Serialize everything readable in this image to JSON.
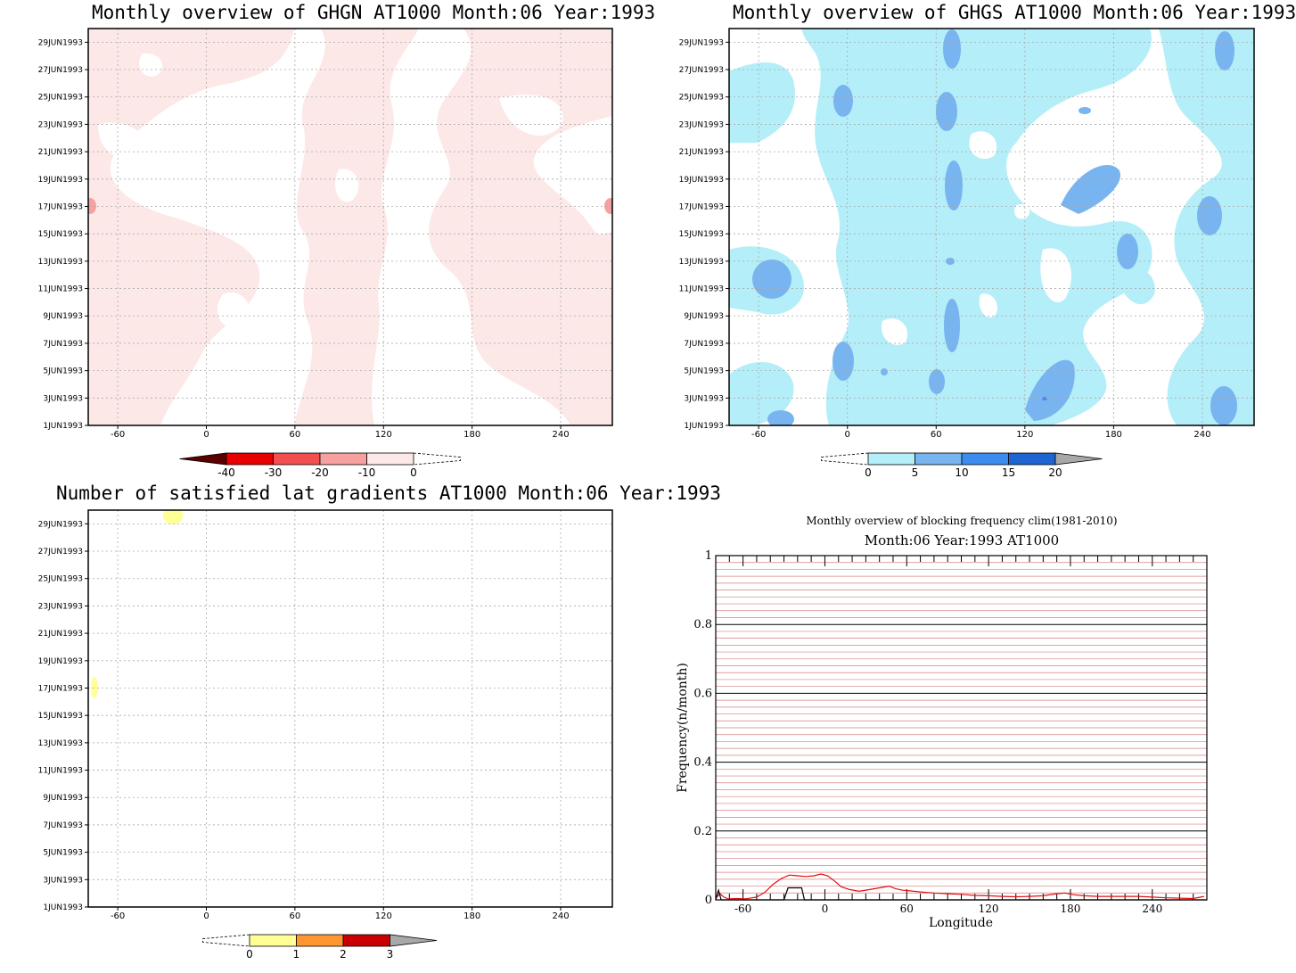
{
  "panels": {
    "ghgn": {
      "title": "Monthly overview of GHGN AT1000 Month:06 Year:1993",
      "colorbar": {
        "labels": [
          "-40",
          "-30",
          "-20",
          "-10",
          "0"
        ],
        "colors": [
          "#5a0000",
          "#e60000",
          "#f25050",
          "#f7a0a0",
          "#fde8e8"
        ]
      }
    },
    "ghgs": {
      "title": "Monthly overview of GHGS AT1000 Month:06 Year:1993",
      "colorbar": {
        "labels": [
          "0",
          "5",
          "10",
          "15",
          "20"
        ],
        "colors": [
          "#b4eef8",
          "#78b4f0",
          "#3c8cf0",
          "#1e64d2"
        ]
      }
    },
    "lat": {
      "title": "Number of satisfied lat gradients AT1000 Month:06 Year:1993",
      "colorbar": {
        "labels": [
          "0",
          "1",
          "2",
          "3"
        ],
        "colors": [
          "#ffff96",
          "#ff9632",
          "#c80000"
        ]
      }
    },
    "freq": {
      "title": "Monthly overview of blocking frequency clim(1981-2010)",
      "subtitle": "Month:06 Year:1993  AT1000",
      "ylabel": "Frequency(n/month)",
      "xlabel": "Longitude"
    }
  },
  "map_axes": {
    "x_ticks": [
      "-60",
      "0",
      "60",
      "120",
      "180",
      "240"
    ],
    "y_ticks": [
      "1JUN1993",
      "3JUN1993",
      "5JUN1993",
      "7JUN1993",
      "9JUN1993",
      "11JUN1993",
      "13JUN1993",
      "15JUN1993",
      "17JUN1993",
      "19JUN1993",
      "21JUN1993",
      "23JUN1993",
      "25JUN1993",
      "27JUN1993",
      "29JUN1993"
    ]
  },
  "chart_data": [
    {
      "type": "heatmap",
      "title": "Monthly overview of GHGN AT1000 Month:06 Year:1993",
      "x_range": [
        -80,
        275
      ],
      "y_range": [
        "1JUN1993",
        "30JUN1993"
      ],
      "x_ticks": [
        -60,
        0,
        60,
        120,
        180,
        240
      ],
      "legend_levels": [
        -40,
        -30,
        -20,
        -10,
        0
      ],
      "grid": true,
      "note_values": "mostly between -10 and 0 over large areas; small regions near -20 at 17JUN1993 on both edges"
    },
    {
      "type": "heatmap",
      "title": "Monthly overview of GHGS AT1000 Month:06 Year:1993",
      "x_range": [
        -80,
        275
      ],
      "y_range": [
        "1JUN1993",
        "30JUN1993"
      ],
      "x_ticks": [
        -60,
        0,
        60,
        120,
        180,
        240
      ],
      "legend_levels": [
        0,
        5,
        10,
        15,
        20
      ],
      "grid": true
    },
    {
      "type": "heatmap",
      "title": "Number of satisfied lat gradients AT1000 Month:06 Year:1993",
      "x_range": [
        -80,
        275
      ],
      "y_range": [
        "1JUN1993",
        "30JUN1993"
      ],
      "x_ticks": [
        -60,
        0,
        60,
        120,
        180,
        240
      ],
      "legend_levels": [
        0,
        1,
        2,
        3
      ],
      "grid": true
    },
    {
      "type": "line",
      "title": "Monthly overview of blocking frequency clim(1981-2010)",
      "subtitle": "Month:06 Year:1993  AT1000",
      "xlabel": "Longitude",
      "ylabel": "Frequency(n/month)",
      "xlim": [
        -80,
        280
      ],
      "ylim": [
        0,
        1
      ],
      "x_ticks": [
        -60,
        0,
        60,
        120,
        180,
        240
      ],
      "y_ticks": [
        "0",
        "0.2",
        "0.4",
        "0.6",
        "0.8",
        "1"
      ],
      "series": [
        {
          "color": "#e01010",
          "x": [
            -80,
            -77,
            -74,
            -71,
            -65,
            -58,
            -50,
            -44,
            -38,
            -32,
            -26,
            -20,
            -14,
            -8,
            -3,
            2,
            7,
            12,
            18,
            25,
            33,
            40,
            47,
            52,
            57,
            63,
            70,
            80,
            90,
            100,
            110,
            120,
            130,
            140,
            150,
            160,
            170,
            176,
            182,
            190,
            200,
            210,
            220,
            230,
            240,
            250,
            260,
            270,
            278
          ],
          "y": [
            0.005,
            0.018,
            0.008,
            0.003,
            0.004,
            0.003,
            0.008,
            0.022,
            0.045,
            0.062,
            0.072,
            0.07,
            0.068,
            0.07,
            0.075,
            0.07,
            0.055,
            0.038,
            0.03,
            0.025,
            0.03,
            0.035,
            0.04,
            0.032,
            0.028,
            0.026,
            0.023,
            0.02,
            0.018,
            0.016,
            0.013,
            0.012,
            0.01,
            0.009,
            0.01,
            0.012,
            0.018,
            0.02,
            0.015,
            0.012,
            0.01,
            0.01,
            0.01,
            0.01,
            0.008,
            0.006,
            0.005,
            0.004,
            0.01
          ]
        },
        {
          "color": "#000000",
          "x": [
            -80,
            -78,
            -76,
            -74,
            -30,
            -27,
            -25,
            -17,
            -15,
            -12,
            280
          ],
          "y": [
            0,
            0.028,
            0,
            0,
            0,
            0.035,
            0.035,
            0.035,
            0,
            0,
            0
          ]
        }
      ]
    }
  ]
}
